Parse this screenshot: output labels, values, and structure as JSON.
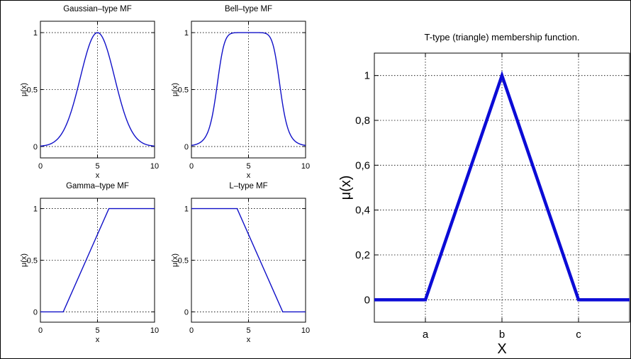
{
  "chart_data": [
    {
      "type": "line",
      "title": "Gaussian–type MF",
      "xlabel": "x",
      "ylabel": "μ(x)",
      "xlim": [
        0,
        10
      ],
      "ylim": [
        -0.1,
        1.1
      ],
      "xticks": [
        0,
        5,
        10
      ],
      "xtick_labels": [
        "0",
        "5",
        "10"
      ],
      "yticks": [
        0,
        0.5,
        1
      ],
      "ytick_labels": [
        "0",
        "0.5",
        "1"
      ],
      "grid": true,
      "series": [
        {
          "function": "gaussian",
          "center": 5,
          "sigma": 1.5
        }
      ]
    },
    {
      "type": "line",
      "title": "Bell–type MF",
      "xlabel": "x",
      "ylabel": "μ(x)",
      "xlim": [
        0,
        10
      ],
      "ylim": [
        -0.1,
        1.1
      ],
      "xticks": [
        0,
        5,
        10
      ],
      "xtick_labels": [
        "0",
        "5",
        "10"
      ],
      "yticks": [
        0,
        0.5,
        1
      ],
      "ytick_labels": [
        "0",
        "0.5",
        "1"
      ],
      "grid": true,
      "series": [
        {
          "function": "generalized-bell",
          "a": 2.8,
          "b": 4,
          "c": 5
        }
      ]
    },
    {
      "type": "line",
      "title": "Gamma–type MF",
      "xlabel": "x",
      "ylabel": "μ(x)",
      "xlim": [
        0,
        10
      ],
      "ylim": [
        -0.1,
        1.1
      ],
      "xticks": [
        0,
        5,
        10
      ],
      "xtick_labels": [
        "0",
        "5",
        "10"
      ],
      "yticks": [
        0,
        0.5,
        1
      ],
      "ytick_labels": [
        "0",
        "0.5",
        "1"
      ],
      "grid": true,
      "series": [
        {
          "x": [
            0,
            2,
            6,
            10
          ],
          "y": [
            0,
            0,
            1,
            1
          ]
        }
      ]
    },
    {
      "type": "line",
      "title": "L–type MF",
      "xlabel": "x",
      "ylabel": "μ(x)",
      "xlim": [
        0,
        10
      ],
      "ylim": [
        -0.1,
        1.1
      ],
      "xticks": [
        0,
        5,
        10
      ],
      "xtick_labels": [
        "0",
        "5",
        "10"
      ],
      "yticks": [
        0,
        0.5,
        1
      ],
      "ytick_labels": [
        "0",
        "0.5",
        "1"
      ],
      "grid": true,
      "series": [
        {
          "x": [
            0,
            4,
            8,
            10
          ],
          "y": [
            1,
            1,
            0,
            0
          ]
        }
      ]
    },
    {
      "type": "line",
      "title": "T-type (triangle) membership function.",
      "xlabel": "X",
      "ylabel": "μ(x)",
      "xlim": [
        0,
        10
      ],
      "ylim": [
        -0.1,
        1.1
      ],
      "xticks": [
        2,
        5,
        8
      ],
      "xtick_labels": [
        "a",
        "b",
        "c"
      ],
      "yticks": [
        0,
        0.2,
        0.4,
        0.6,
        0.8,
        1
      ],
      "ytick_labels": [
        "0",
        "0,2",
        "0,4",
        "0,6",
        "0,8",
        "1"
      ],
      "grid": true,
      "series": [
        {
          "x": [
            0,
            2,
            5,
            8,
            10
          ],
          "y": [
            0,
            0,
            1,
            0,
            0
          ]
        }
      ]
    }
  ]
}
